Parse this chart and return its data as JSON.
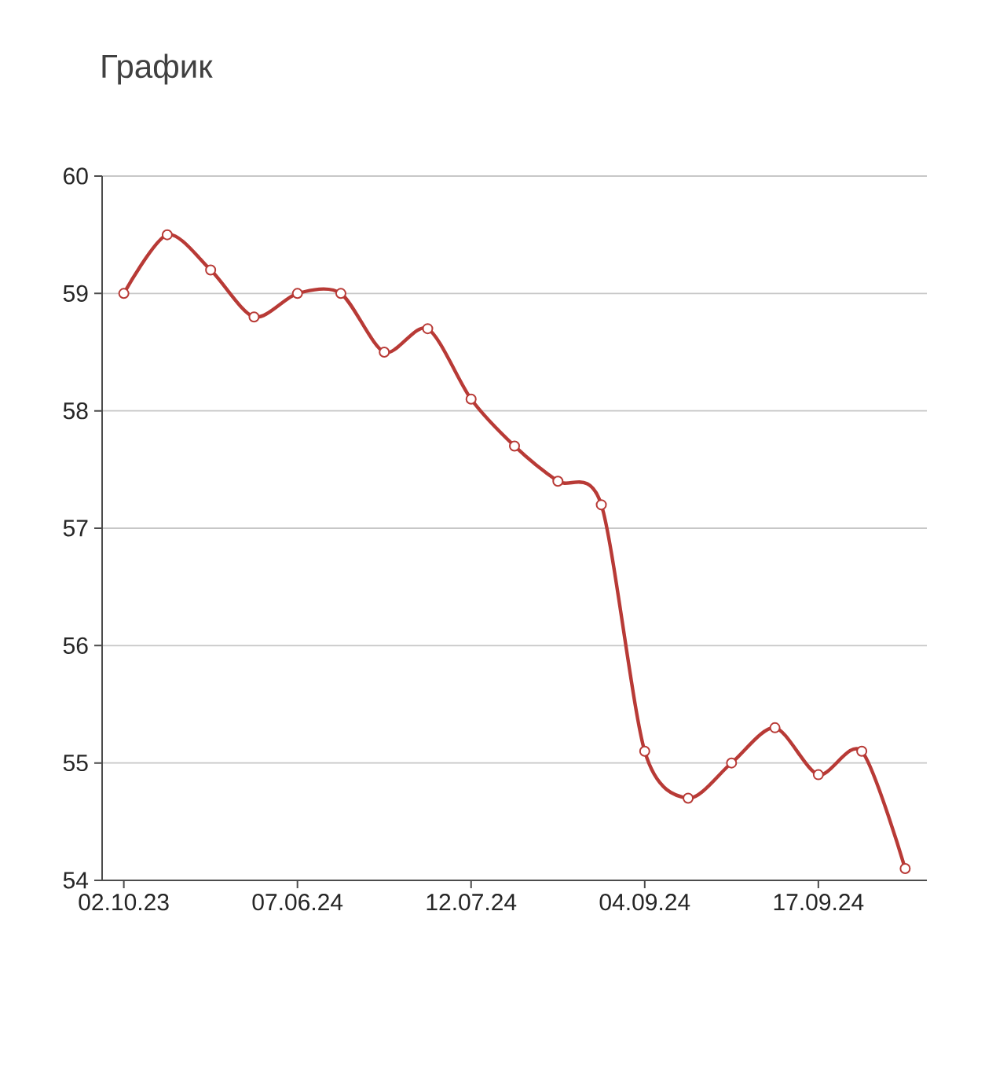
{
  "chart_data": {
    "type": "line",
    "title": "График",
    "categories": [
      "02.10.23",
      null,
      null,
      null,
      "07.06.24",
      null,
      null,
      null,
      "12.07.24",
      null,
      null,
      null,
      "04.09.24",
      null,
      null,
      null,
      "17.09.24",
      null,
      null
    ],
    "series": [
      {
        "color": "#b83a36",
        "values": [
          59.0,
          59.5,
          59.2,
          58.8,
          59.0,
          59.0,
          58.5,
          58.7,
          58.1,
          57.7,
          57.4,
          57.2,
          55.1,
          54.7,
          55.0,
          55.3,
          54.9,
          55.1,
          54.1
        ]
      }
    ],
    "ylim": [
      54,
      60
    ],
    "yticks": [
      54,
      55,
      56,
      57,
      58,
      59,
      60
    ],
    "grid": "y",
    "marker": "circle",
    "line_style": "solid"
  }
}
